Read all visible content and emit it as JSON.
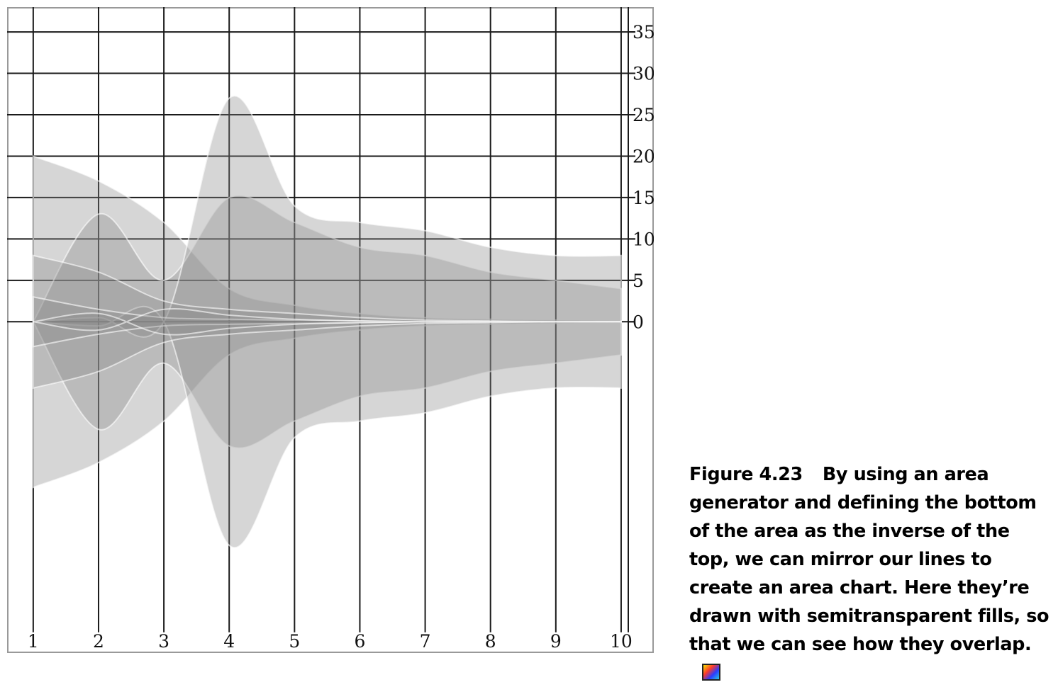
{
  "caption": {
    "figure_label": "Figure 4.23",
    "text": "By using an area generator and defining the bottom of the area as the inverse of the top, we can mirror our lines to create an area chart. Here they’re drawn with semitransparent fills, so that we can see how they overlap."
  },
  "chart_data": {
    "type": "area",
    "title": "",
    "xlabel": "",
    "ylabel": "",
    "x": [
      1,
      2,
      3,
      4,
      5,
      6,
      7,
      8,
      9,
      10
    ],
    "xlim": [
      0.6,
      10.5
    ],
    "ylim": [
      -40,
      38
    ],
    "x_ticks": [
      "1",
      "2",
      "3",
      "4",
      "5",
      "6",
      "7",
      "8",
      "9",
      "10"
    ],
    "y_ticks": [
      "35",
      "30",
      "25",
      "20",
      "15",
      "10",
      "5",
      "0"
    ],
    "y_tick_values": [
      35,
      30,
      25,
      20,
      15,
      10,
      5,
      0
    ],
    "y_axis_position": "right",
    "grid": true,
    "mirrored": true,
    "fill_color": "#8a8a8a",
    "fill_opacity": 0.35,
    "series": [
      {
        "values": [
          20,
          17,
          12,
          4,
          2,
          1,
          0.5,
          0.3,
          0.2,
          0.1
        ]
      },
      {
        "values": [
          0,
          13,
          5,
          15,
          12,
          9,
          8,
          6,
          5,
          4
        ]
      },
      {
        "values": [
          0,
          0.5,
          0,
          27,
          14,
          12,
          11,
          9,
          8,
          8
        ]
      },
      {
        "values": [
          8,
          6,
          2.5,
          1.5,
          1,
          0.5,
          0.2,
          0.1,
          0,
          0
        ]
      },
      {
        "values": [
          3,
          1.5,
          0.5,
          0.3,
          0.2,
          0.1,
          0,
          0,
          0,
          0
        ]
      },
      {
        "values": [
          0,
          -1,
          1.5,
          0.8,
          0.3,
          0.1,
          0,
          0,
          0,
          0
        ]
      }
    ]
  }
}
